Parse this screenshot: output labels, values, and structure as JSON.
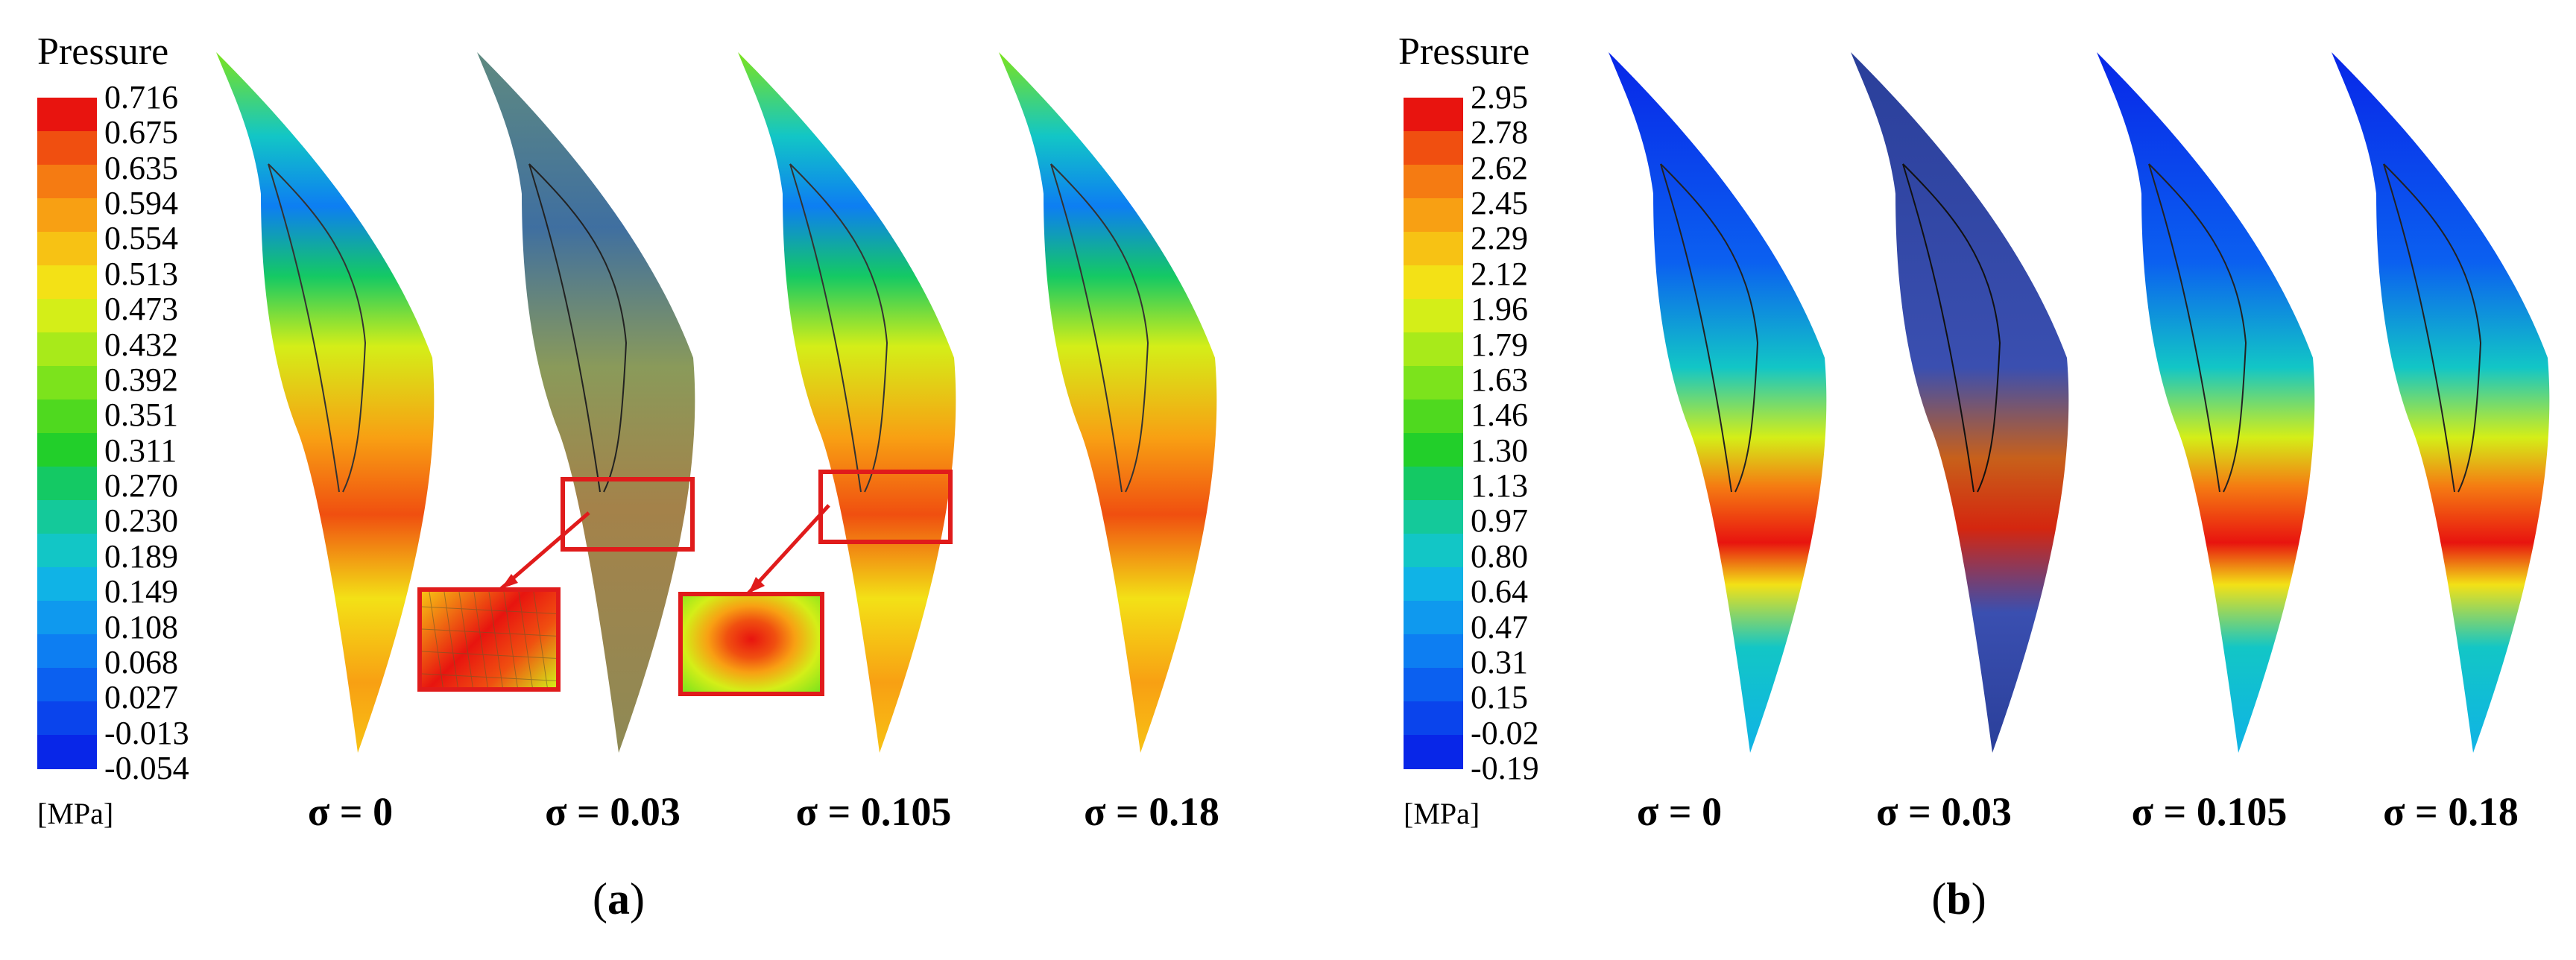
{
  "panels": [
    {
      "legend_title": "Pressure",
      "unit": "[MPa]",
      "ticks": [
        "0.716",
        "0.675",
        "0.635",
        "0.594",
        "0.554",
        "0.513",
        "0.473",
        "0.432",
        "0.392",
        "0.351",
        "0.311",
        "0.270",
        "0.230",
        "0.189",
        "0.149",
        "0.108",
        "0.068",
        "0.027",
        "-0.013",
        "-0.054"
      ],
      "cases": [
        "σ = 0",
        "σ = 0.03",
        "σ = 0.105",
        "σ = 0.18"
      ],
      "caption_open": "(",
      "caption_letter": "a",
      "caption_close": ")"
    },
    {
      "legend_title": "Pressure",
      "unit": "[MPa]",
      "ticks": [
        "2.95",
        "2.78",
        "2.62",
        "2.45",
        "2.29",
        "2.12",
        "1.96",
        "1.79",
        "1.63",
        "1.46",
        "1.30",
        "1.13",
        "0.97",
        "0.80",
        "0.64",
        "0.47",
        "0.31",
        "0.15",
        "-0.02",
        "-0.19"
      ],
      "cases": [
        "σ = 0",
        "σ = 0.03",
        "σ = 0.105",
        "σ = 0.18"
      ],
      "caption_open": "(",
      "caption_letter": "b",
      "caption_close": ")"
    }
  ],
  "colorbar_colors": [
    "#e8140f",
    "#f04f10",
    "#f57b12",
    "#f8a013",
    "#f7c214",
    "#f3e116",
    "#d4ee18",
    "#a8ea1a",
    "#7ce31c",
    "#4fd91f",
    "#22cf2a",
    "#14c964",
    "#14c99a",
    "#12c6c6",
    "#10b3e6",
    "#0f99ee",
    "#0d7ef2",
    "#0b60f0",
    "#0a44ec",
    "#0826e8"
  ],
  "accent_color": "#e01b1b"
}
